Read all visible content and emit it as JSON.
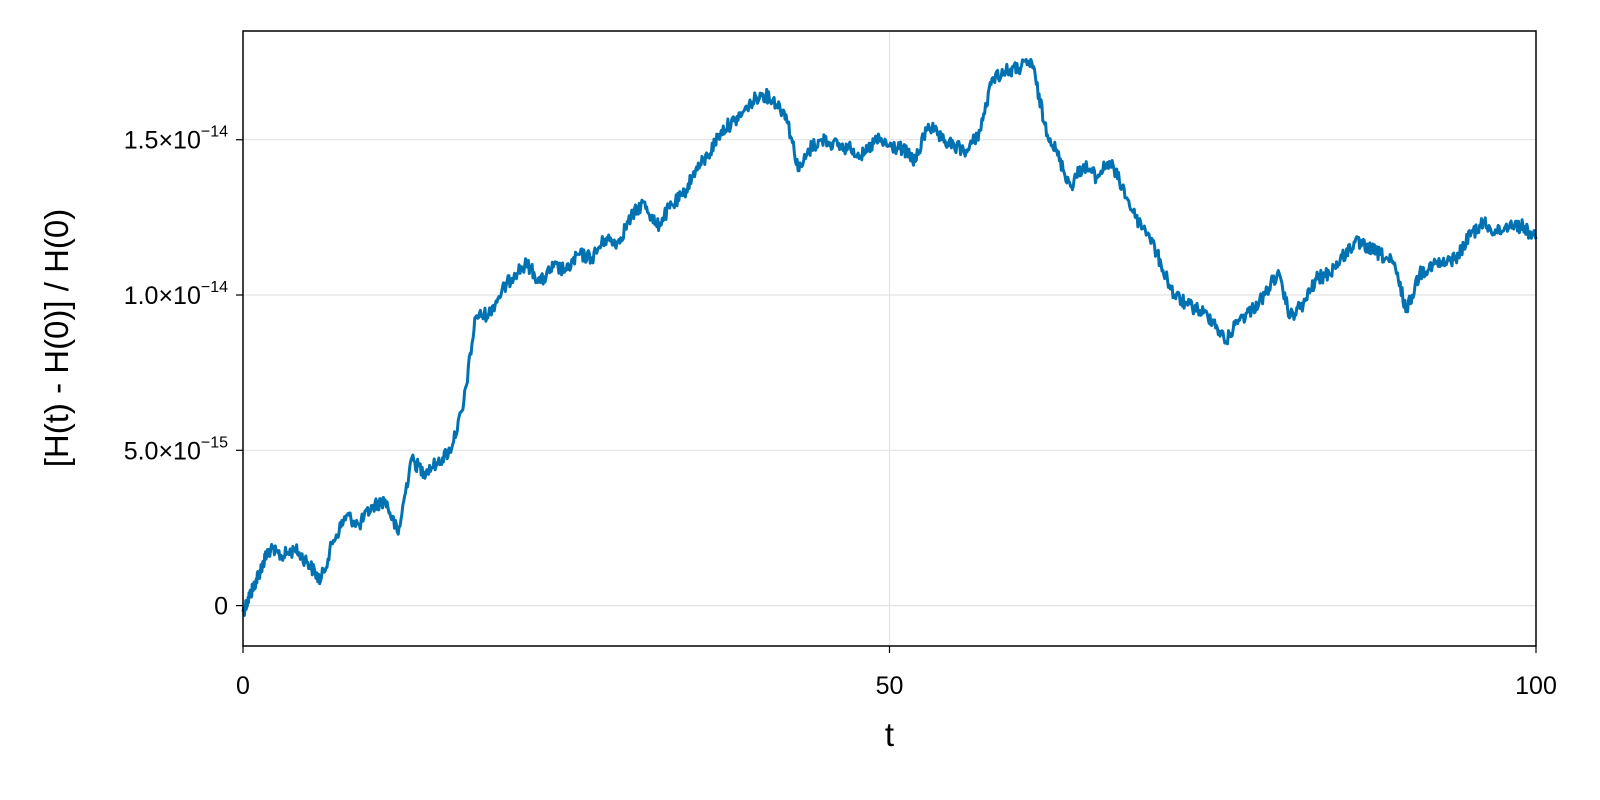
{
  "chart_data": {
    "type": "line",
    "title": "",
    "xlabel": "t",
    "ylabel": "[H(t) - H(0)] / H(0)",
    "xlim": [
      0,
      100
    ],
    "ylim": [
      -1.3e-15,
      1.85e-14
    ],
    "grid": true,
    "legend": "none",
    "series_color": "#0072b2",
    "x_ticks": [
      {
        "value": 0,
        "label": "0"
      },
      {
        "value": 50,
        "label": "50"
      },
      {
        "value": 100,
        "label": "100"
      }
    ],
    "y_ticks": [
      {
        "value": 0,
        "label": "0",
        "mantissa": "",
        "exponent": ""
      },
      {
        "value": 5e-15,
        "label": "5.0×10−15",
        "mantissa": "5.0×10",
        "exponent": "−15"
      },
      {
        "value": 1e-14,
        "label": "1.0×10−14",
        "mantissa": "1.0×10",
        "exponent": "−14"
      },
      {
        "value": 1.5e-14,
        "label": "1.5×10−14",
        "mantissa": "1.5×10",
        "exponent": "−14"
      }
    ],
    "series": [
      {
        "x": [
          0,
          0.5,
          1,
          1.5,
          2,
          3,
          4,
          5,
          6,
          7,
          8,
          9,
          10,
          11,
          12,
          13,
          14,
          15,
          16,
          17,
          18,
          19,
          20,
          21,
          22,
          23,
          24,
          25,
          26,
          27,
          28,
          29,
          30,
          31,
          32,
          33,
          34,
          35,
          36,
          37,
          38,
          39,
          40,
          41,
          42,
          43,
          44,
          45,
          46,
          47,
          48,
          49,
          50,
          51,
          52,
          53,
          54,
          55,
          56,
          57,
          58,
          59,
          60,
          61,
          62,
          63,
          64,
          65,
          66,
          67,
          68,
          69,
          70,
          71,
          72,
          73,
          74,
          75,
          76,
          77,
          78,
          79,
          80,
          81,
          82,
          83,
          84,
          85,
          86,
          87,
          88,
          89,
          90,
          91,
          92,
          93,
          94,
          95,
          96,
          97,
          98,
          99,
          100
        ],
        "y": [
          -2e-16,
          3e-16,
          8e-16,
          1.3e-15,
          1.8e-15,
          1.6e-15,
          1.8e-15,
          1.4e-15,
          8e-16,
          2.1e-15,
          2.9e-15,
          2.6e-15,
          3.2e-15,
          3.4e-15,
          2.3e-15,
          4.7e-15,
          4.3e-15,
          4.6e-15,
          5e-15,
          6.3e-15,
          9.3e-15,
          9.4e-15,
          1.01e-14,
          1.07e-14,
          1.1e-14,
          1.04e-14,
          1.09e-14,
          1.08e-14,
          1.13e-14,
          1.12e-14,
          1.18e-14,
          1.17e-14,
          1.25e-14,
          1.3e-14,
          1.22e-14,
          1.28e-14,
          1.32e-14,
          1.4e-14,
          1.45e-14,
          1.53e-14,
          1.56e-14,
          1.6e-14,
          1.65e-14,
          1.63e-14,
          1.58e-14,
          1.4e-14,
          1.48e-14,
          1.5e-14,
          1.48e-14,
          1.47e-14,
          1.45e-14,
          1.5e-14,
          1.48e-14,
          1.47e-14,
          1.43e-14,
          1.55e-14,
          1.5e-14,
          1.48e-14,
          1.46e-14,
          1.53e-14,
          1.7e-14,
          1.72e-14,
          1.73e-14,
          1.75e-14,
          1.55e-14,
          1.45e-14,
          1.35e-14,
          1.42e-14,
          1.38e-14,
          1.43e-14,
          1.35e-14,
          1.25e-14,
          1.2e-14,
          1.1e-14,
          1e-14,
          9.7e-15,
          9.5e-15,
          9.2e-15,
          8.5e-15,
          9.2e-15,
          9.5e-15,
          1e-14,
          1.07e-14,
          9.3e-15,
          9.7e-15,
          1.05e-14,
          1.07e-14,
          1.12e-14,
          1.17e-14,
          1.15e-14,
          1.13e-14,
          1.1e-14,
          9.5e-15,
          1.07e-14,
          1.1e-14,
          1.1e-14,
          1.13e-14,
          1.2e-14,
          1.23e-14,
          1.2e-14,
          1.23e-14,
          1.22e-14,
          1.18e-14
        ]
      }
    ]
  }
}
